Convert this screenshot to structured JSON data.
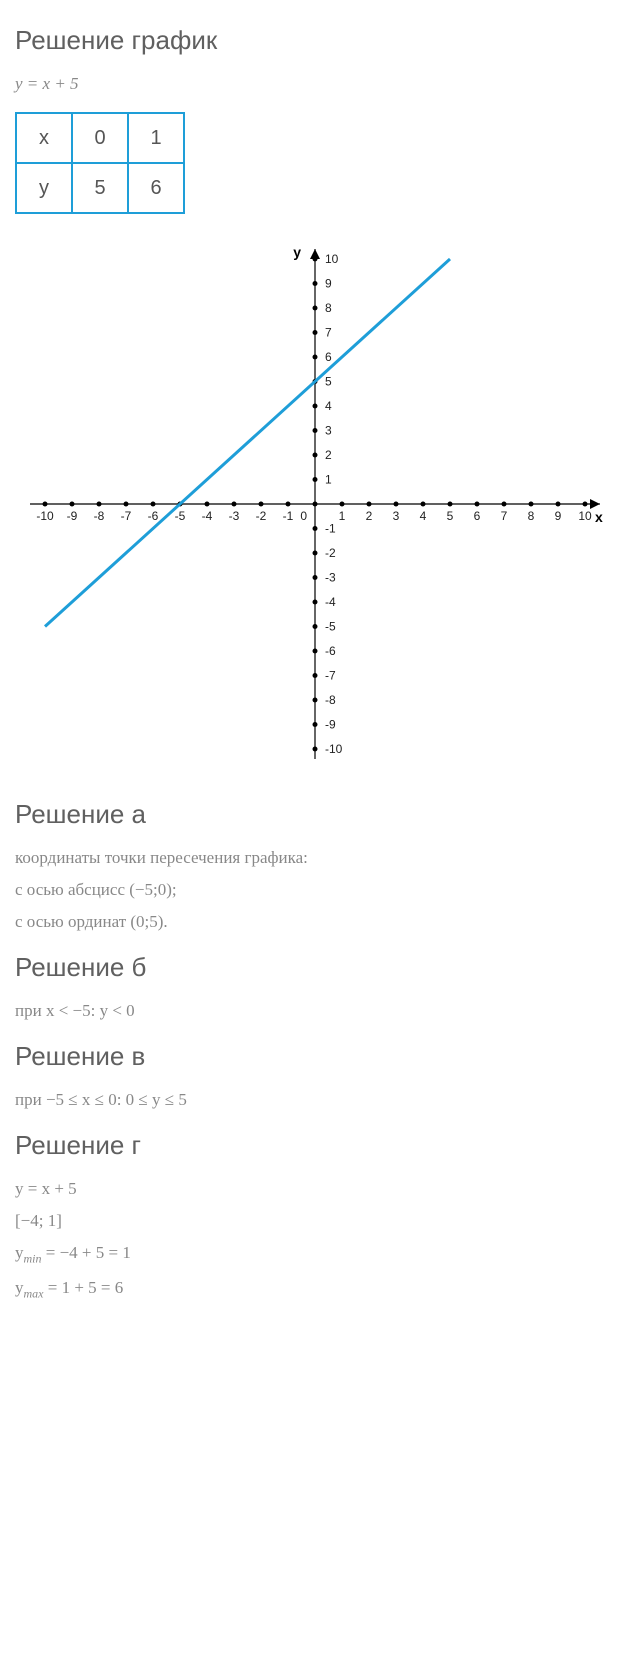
{
  "headings": {
    "graph": "Решение график",
    "a": "Решение а",
    "b": "Решение б",
    "v": "Решение в",
    "g": "Решение г"
  },
  "main_formula": "y = x + 5",
  "table": {
    "rows": [
      [
        "x",
        "0",
        "1"
      ],
      [
        "y",
        "5",
        "6"
      ]
    ],
    "border_color": "#1e9ed8"
  },
  "chart": {
    "type": "line",
    "x_range": [
      -10,
      10
    ],
    "y_range": [
      -10,
      10
    ],
    "x_ticks": [
      -10,
      -9,
      -8,
      -7,
      -6,
      -5,
      -4,
      -3,
      -2,
      -1,
      0,
      1,
      2,
      3,
      4,
      5,
      6,
      7,
      8,
      9,
      10
    ],
    "y_ticks": [
      -10,
      -9,
      -8,
      -7,
      -6,
      -5,
      -4,
      -3,
      -2,
      -1,
      1,
      2,
      3,
      4,
      5,
      6,
      7,
      8,
      9,
      10
    ],
    "x_axis_label": "x",
    "y_axis_label": "y",
    "line_points": [
      [
        -10,
        -5
      ],
      [
        6,
        11
      ]
    ],
    "line_color": "#1e9ed8",
    "line_width": 3,
    "axis_color": "#000000",
    "tick_color": "#000000",
    "background_color": "#ffffff",
    "label_fontsize": 12
  },
  "solution_a": {
    "line1": "координаты точки пересечения графика:",
    "line2": "с осью абсцисс (−5;0);",
    "line3": "с осью ординат (0;5)."
  },
  "solution_b": {
    "line1": "при x < −5: y < 0"
  },
  "solution_v": {
    "line1": "при −5 ≤ x ≤ 0: 0 ≤ y ≤ 5"
  },
  "solution_g": {
    "line1": "y = x + 5",
    "line2": "[−4; 1]",
    "line3_pre": "y",
    "line3_sub": "min",
    "line3_post": " = −4 + 5 = 1",
    "line4_pre": "y",
    "line4_sub": "max",
    "line4_post": " = 1 + 5 = 6"
  }
}
